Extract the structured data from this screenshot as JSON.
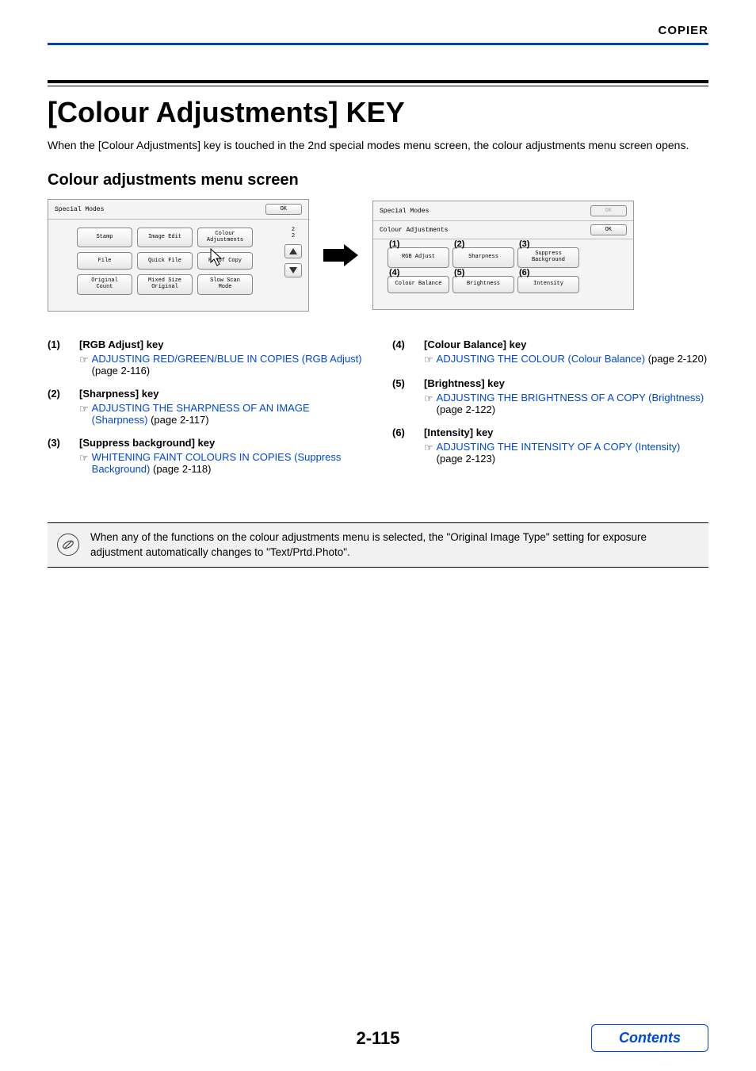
{
  "header": {
    "section_label": "COPIER"
  },
  "title": "[Colour Adjustments] KEY",
  "intro": "When the [Colour Adjustments] key is touched in the 2nd special modes menu screen, the colour adjustments menu screen opens.",
  "subhead": "Colour adjustments menu screen",
  "colors": {
    "header_rule": "#0048a0",
    "link": "#0048d8",
    "panel_bg": "#f4f4f4",
    "note_bg": "#f1f1f1",
    "arrow_fill": "#010101"
  },
  "left_panel": {
    "title": "Special Modes",
    "ok": "OK",
    "buttons": [
      "Stamp",
      "Image Edit",
      "Colour\nAdjustments",
      "File",
      "Quick File",
      "Proof Copy",
      "Original\nCount",
      "Mixed Size\nOriginal",
      "Slow Scan\nMode"
    ],
    "pager_top": "2",
    "pager_bottom": "2"
  },
  "right_panel": {
    "title": "Special Modes",
    "subtitle": "Colour Adjustments",
    "ok_top": "OK",
    "ok_sub": "OK",
    "buttons": [
      {
        "num": "(1)",
        "label": "RGB Adjust"
      },
      {
        "num": "(2)",
        "label": "Sharpness"
      },
      {
        "num": "(3)",
        "label": "Suppress\nBackground"
      },
      {
        "num": "(4)",
        "label": "Colour Balance"
      },
      {
        "num": "(5)",
        "label": "Brightness"
      },
      {
        "num": "(6)",
        "label": "Intensity"
      }
    ]
  },
  "keys_left": [
    {
      "num": "(1)",
      "title": "[RGB Adjust] key",
      "link": "ADJUSTING RED/GREEN/BLUE IN COPIES (RGB Adjust)",
      "suffix": " (page 2-116)"
    },
    {
      "num": "(2)",
      "title": "[Sharpness] key",
      "link": "ADJUSTING THE SHARPNESS OF AN IMAGE (Sharpness)",
      "suffix": " (page 2-117)"
    },
    {
      "num": "(3)",
      "title": "[Suppress background] key",
      "link": "WHITENING FAINT COLOURS IN COPIES (Suppress Background)",
      "suffix": " (page 2-118)"
    }
  ],
  "keys_right": [
    {
      "num": "(4)",
      "title": "[Colour Balance] key",
      "link": "ADJUSTING THE COLOUR (Colour Balance)",
      "suffix": " (page 2-120)"
    },
    {
      "num": "(5)",
      "title": "[Brightness] key",
      "link": "ADJUSTING THE BRIGHTNESS OF A COPY (Brightness)",
      "suffix": " (page 2-122)"
    },
    {
      "num": "(6)",
      "title": "[Intensity] key",
      "link": "ADJUSTING THE INTENSITY OF A COPY (Intensity)",
      "suffix": " (page 2-123)"
    }
  ],
  "note": "When any of the functions on the colour adjustments menu is selected, the \"Original Image Type\" setting for exposure adjustment automatically changes to \"Text/Prtd.Photo\".",
  "footer": {
    "page_num": "2-115",
    "contents_label": "Contents"
  }
}
